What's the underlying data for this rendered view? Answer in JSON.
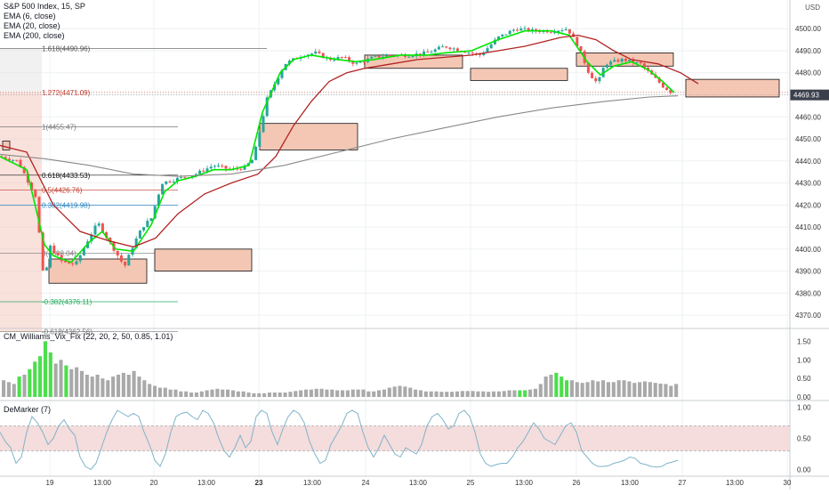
{
  "header": {
    "symbol": "S&P 500 Index, 15, SP",
    "indicators": [
      "EMA (6, close)",
      "EMA (20, close)",
      "EMA (200, close)"
    ],
    "currency": "USD",
    "last_price": "4469.93"
  },
  "colors": {
    "up": "#26a69a",
    "down": "#ef5350",
    "ema6": "#00e600",
    "ema20": "#b22222",
    "ema200": "#888888",
    "zone_fill": "#f4c7b5",
    "zone_stroke": "#111111",
    "vix_green": "#4cde4c",
    "vix_gray": "#a9a9a9",
    "demarker": "#7fb3c8",
    "demarker_band": "#f2d5d5"
  },
  "price_axis": {
    "ticks": [
      "4500.00",
      "4490.00",
      "4480.00",
      "4470.00",
      "4460.00",
      "4450.00",
      "4440.00",
      "4430.00",
      "4420.00",
      "4410.00",
      "4400.00",
      "4390.00",
      "4380.00",
      "4370.00"
    ]
  },
  "time_axis": {
    "labels": [
      "19",
      "13:00",
      "20",
      "13:00",
      "23",
      "13:00",
      "24",
      "13:00",
      "25",
      "13:00",
      "26",
      "13:00",
      "27",
      "13:00",
      "30"
    ]
  },
  "fib_levels": [
    {
      "label": "1.618(4490.96)",
      "value": 4490.96,
      "color": "#555555"
    },
    {
      "label": "1.272(4471.09)",
      "value": 4471.09,
      "color": "#c0392b"
    },
    {
      "label": "1(4455.47)",
      "value": 4455.47,
      "color": "#777777"
    },
    {
      "label": "0.618(4433.53)",
      "value": 4433.53,
      "color": "#111111"
    },
    {
      "label": "0.5(4426.76)",
      "value": 4426.76,
      "color": "#c0392b"
    },
    {
      "label": "0.382(4419.98)",
      "value": 4419.98,
      "color": "#2e86c1"
    },
    {
      "label": "0(4398.04)",
      "value": 4398.04,
      "color": "#777777"
    },
    {
      "label": "-0.382(4376.11)",
      "value": 4376.11,
      "color": "#27ae60"
    },
    {
      "label": "-0.618(4362.56)",
      "value": 4362.56,
      "color": "#777777"
    }
  ],
  "zones": [
    {
      "t0": 3,
      "t1": 11,
      "top": 4449.0,
      "bottom": 4445.0
    },
    {
      "t0": 55,
      "t1": 165,
      "top": 4395.5,
      "bottom": 4384.5
    },
    {
      "t0": 174,
      "t1": 283,
      "top": 4400.0,
      "bottom": 4390.0
    },
    {
      "t0": 292,
      "t1": 402,
      "top": 4457.0,
      "bottom": 4445.0
    },
    {
      "t0": 410,
      "t1": 520,
      "top": 4488.0,
      "bottom": 4482.0
    },
    {
      "t0": 529,
      "t1": 638,
      "top": 4482.0,
      "bottom": 4476.5
    },
    {
      "t0": 648,
      "t1": 757,
      "top": 4489.0,
      "bottom": 4483.0
    },
    {
      "t0": 771,
      "t1": 876,
      "top": 4477.0,
      "bottom": 4469.0
    }
  ],
  "chart_data": [
    {
      "type": "candlestick",
      "title": "S&P 500 Index, 15, SP",
      "ylim": [
        4364,
        4513
      ],
      "x_labels": [
        "19",
        "13:00",
        "20",
        "13:00",
        "23",
        "13:00",
        "24",
        "13:00",
        "25",
        "13:00",
        "26",
        "13:00",
        "27",
        "13:00",
        "30"
      ],
      "price_path": [
        [
          0,
          4442
        ],
        [
          20,
          4440
        ],
        [
          40,
          4424
        ],
        [
          50,
          4382
        ],
        [
          55,
          4402
        ],
        [
          70,
          4394
        ],
        [
          85,
          4393
        ],
        [
          100,
          4405
        ],
        [
          110,
          4412
        ],
        [
          125,
          4402
        ],
        [
          140,
          4392
        ],
        [
          150,
          4402
        ],
        [
          160,
          4410
        ],
        [
          170,
          4414
        ],
        [
          182,
          4430
        ],
        [
          200,
          4432
        ],
        [
          220,
          4434
        ],
        [
          240,
          4438
        ],
        [
          260,
          4436
        ],
        [
          275,
          4437
        ],
        [
          285,
          4441
        ],
        [
          290,
          4450
        ],
        [
          300,
          4468
        ],
        [
          320,
          4484
        ],
        [
          340,
          4488
        ],
        [
          355,
          4489
        ],
        [
          370,
          4486
        ],
        [
          385,
          4487
        ],
        [
          400,
          4484
        ],
        [
          420,
          4487
        ],
        [
          440,
          4488
        ],
        [
          460,
          4488
        ],
        [
          480,
          4489
        ],
        [
          500,
          4492
        ],
        [
          520,
          4490
        ],
        [
          540,
          4488
        ],
        [
          560,
          4496
        ],
        [
          580,
          4500
        ],
        [
          600,
          4499
        ],
        [
          620,
          4499
        ],
        [
          638,
          4500
        ],
        [
          650,
          4492
        ],
        [
          662,
          4480
        ],
        [
          672,
          4475
        ],
        [
          680,
          4484
        ],
        [
          700,
          4486
        ],
        [
          720,
          4484
        ],
        [
          735,
          4478
        ],
        [
          745,
          4474
        ],
        [
          758,
          4470
        ]
      ],
      "ema_series": [
        {
          "name": "EMA (6, close)",
          "points": [
            [
              0,
              4442
            ],
            [
              30,
              4436
            ],
            [
              50,
              4402
            ],
            [
              60,
              4397
            ],
            [
              80,
              4394
            ],
            [
              100,
              4403
            ],
            [
              115,
              4408
            ],
            [
              130,
              4400
            ],
            [
              150,
              4399
            ],
            [
              170,
              4411
            ],
            [
              185,
              4426
            ],
            [
              200,
              4431
            ],
            [
              220,
              4433
            ],
            [
              240,
              4436
            ],
            [
              260,
              4436
            ],
            [
              280,
              4438
            ],
            [
              295,
              4462
            ],
            [
              315,
              4480
            ],
            [
              330,
              4486
            ],
            [
              350,
              4488
            ],
            [
              380,
              4486
            ],
            [
              400,
              4485
            ],
            [
              420,
              4486
            ],
            [
              450,
              4488
            ],
            [
              480,
              4488
            ],
            [
              500,
              4489
            ],
            [
              530,
              4490
            ],
            [
              560,
              4495
            ],
            [
              590,
              4499
            ],
            [
              620,
              4499
            ],
            [
              640,
              4497
            ],
            [
              660,
              4485
            ],
            [
              675,
              4479
            ],
            [
              690,
              4483
            ],
            [
              710,
              4485
            ],
            [
              730,
              4481
            ],
            [
              745,
              4476
            ],
            [
              758,
              4471
            ]
          ]
        },
        {
          "name": "EMA (20, close)",
          "points": [
            [
              0,
              4447
            ],
            [
              30,
              4444
            ],
            [
              60,
              4420
            ],
            [
              90,
              4408
            ],
            [
              120,
              4404
            ],
            [
              150,
              4401
            ],
            [
              175,
              4405
            ],
            [
              200,
              4416
            ],
            [
              230,
              4425
            ],
            [
              260,
              4430
            ],
            [
              290,
              4434
            ],
            [
              310,
              4442
            ],
            [
              330,
              4456
            ],
            [
              350,
              4467
            ],
            [
              370,
              4476
            ],
            [
              390,
              4480
            ],
            [
              410,
              4482
            ],
            [
              440,
              4484
            ],
            [
              470,
              4486
            ],
            [
              500,
              4487
            ],
            [
              530,
              4488
            ],
            [
              560,
              4490
            ],
            [
              590,
              4492
            ],
            [
              610,
              4494
            ],
            [
              630,
              4496
            ],
            [
              650,
              4497
            ],
            [
              670,
              4495
            ],
            [
              690,
              4490
            ],
            [
              710,
              4486
            ],
            [
              740,
              4484
            ],
            [
              765,
              4480
            ],
            [
              785,
              4475
            ]
          ]
        },
        {
          "name": "EMA (200, close)",
          "points": [
            [
              0,
              4443
            ],
            [
              50,
              4441
            ],
            [
              100,
              4438
            ],
            [
              150,
              4434
            ],
            [
              200,
              4433
            ],
            [
              260,
              4434
            ],
            [
              320,
              4438
            ],
            [
              380,
              4444
            ],
            [
              440,
              4450
            ],
            [
              500,
              4455
            ],
            [
              560,
              4460
            ],
            [
              620,
              4464
            ],
            [
              680,
              4467
            ],
            [
              730,
              4469
            ],
            [
              762,
              4469.5
            ]
          ]
        }
      ]
    },
    {
      "type": "bar",
      "title": "CM_Williams_Vix_Fix (22, 20, 2, 50, 0.85, 1.01)",
      "ylim": [
        0,
        1.75
      ],
      "y_ticks": [
        "1.50",
        "1.00",
        "0.50",
        "0.00"
      ],
      "values": [
        0.45,
        0.4,
        0.35,
        0.55,
        0.6,
        0.75,
        0.95,
        1.1,
        1.5,
        1.2,
        0.9,
        1.0,
        0.85,
        0.75,
        0.8,
        0.7,
        0.6,
        0.55,
        0.6,
        0.5,
        0.45,
        0.55,
        0.6,
        0.65,
        0.6,
        0.7,
        0.55,
        0.45,
        0.35,
        0.3,
        0.25,
        0.25,
        0.2,
        0.2,
        0.15,
        0.15,
        0.12,
        0.12,
        0.15,
        0.18,
        0.2,
        0.22,
        0.2,
        0.2,
        0.18,
        0.15,
        0.15,
        0.12,
        0.1,
        0.1,
        0.1,
        0.12,
        0.12,
        0.12,
        0.12,
        0.14,
        0.16,
        0.18,
        0.2,
        0.2,
        0.22,
        0.22,
        0.2,
        0.2,
        0.18,
        0.18,
        0.18,
        0.2,
        0.2,
        0.2,
        0.15,
        0.15,
        0.18,
        0.2,
        0.25,
        0.28,
        0.3,
        0.28,
        0.25,
        0.2,
        0.18,
        0.15,
        0.15,
        0.15,
        0.14,
        0.14,
        0.14,
        0.15,
        0.16,
        0.16,
        0.16,
        0.15,
        0.15,
        0.14,
        0.15,
        0.15,
        0.16,
        0.18,
        0.18,
        0.18,
        0.18,
        0.2,
        0.22,
        0.35,
        0.55,
        0.6,
        0.65,
        0.55,
        0.45,
        0.45,
        0.4,
        0.38,
        0.4,
        0.45,
        0.42,
        0.45,
        0.4,
        0.4,
        0.45,
        0.45,
        0.42,
        0.38,
        0.4,
        0.42,
        0.4,
        0.38,
        0.36,
        0.35,
        0.3,
        0.35
      ],
      "highlight": [
        [
          3,
          3
        ],
        [
          5,
          9
        ],
        [
          12,
          12
        ],
        [
          99,
          100
        ],
        [
          106,
          108
        ]
      ]
    },
    {
      "type": "line",
      "title": "DeMarker (7)",
      "ylim": [
        -0.05,
        1.05
      ],
      "y_ticks": [
        "1.00",
        "0.50",
        "0.00"
      ],
      "band": [
        0.3,
        0.7
      ],
      "values": [
        0.6,
        0.45,
        0.35,
        0.1,
        0.2,
        0.6,
        0.85,
        0.75,
        0.6,
        0.4,
        0.5,
        0.7,
        0.8,
        0.65,
        0.55,
        0.2,
        0.05,
        0.0,
        0.1,
        0.35,
        0.6,
        0.8,
        0.95,
        0.9,
        0.85,
        0.9,
        0.85,
        0.6,
        0.4,
        0.15,
        0.05,
        0.25,
        0.6,
        0.85,
        0.9,
        0.92,
        0.85,
        0.8,
        0.95,
        0.9,
        0.75,
        0.5,
        0.3,
        0.2,
        0.35,
        0.55,
        0.35,
        0.45,
        0.85,
        0.95,
        0.9,
        0.6,
        0.4,
        0.65,
        0.85,
        0.95,
        0.9,
        0.75,
        0.45,
        0.25,
        0.1,
        0.15,
        0.4,
        0.55,
        0.7,
        0.9,
        0.95,
        0.9,
        0.6,
        0.35,
        0.2,
        0.35,
        0.55,
        0.4,
        0.25,
        0.2,
        0.35,
        0.3,
        0.25,
        0.4,
        0.7,
        0.85,
        0.9,
        0.8,
        0.65,
        0.7,
        0.9,
        0.95,
        0.85,
        0.6,
        0.25,
        0.1,
        0.05,
        0.08,
        0.1,
        0.1,
        0.2,
        0.35,
        0.45,
        0.6,
        0.75,
        0.65,
        0.5,
        0.45,
        0.4,
        0.55,
        0.7,
        0.75,
        0.6,
        0.3,
        0.2,
        0.1,
        0.05,
        0.05,
        0.06,
        0.1,
        0.12,
        0.15,
        0.2,
        0.18,
        0.1,
        0.08,
        0.05,
        0.04,
        0.05,
        0.1,
        0.12,
        0.15
      ]
    }
  ]
}
